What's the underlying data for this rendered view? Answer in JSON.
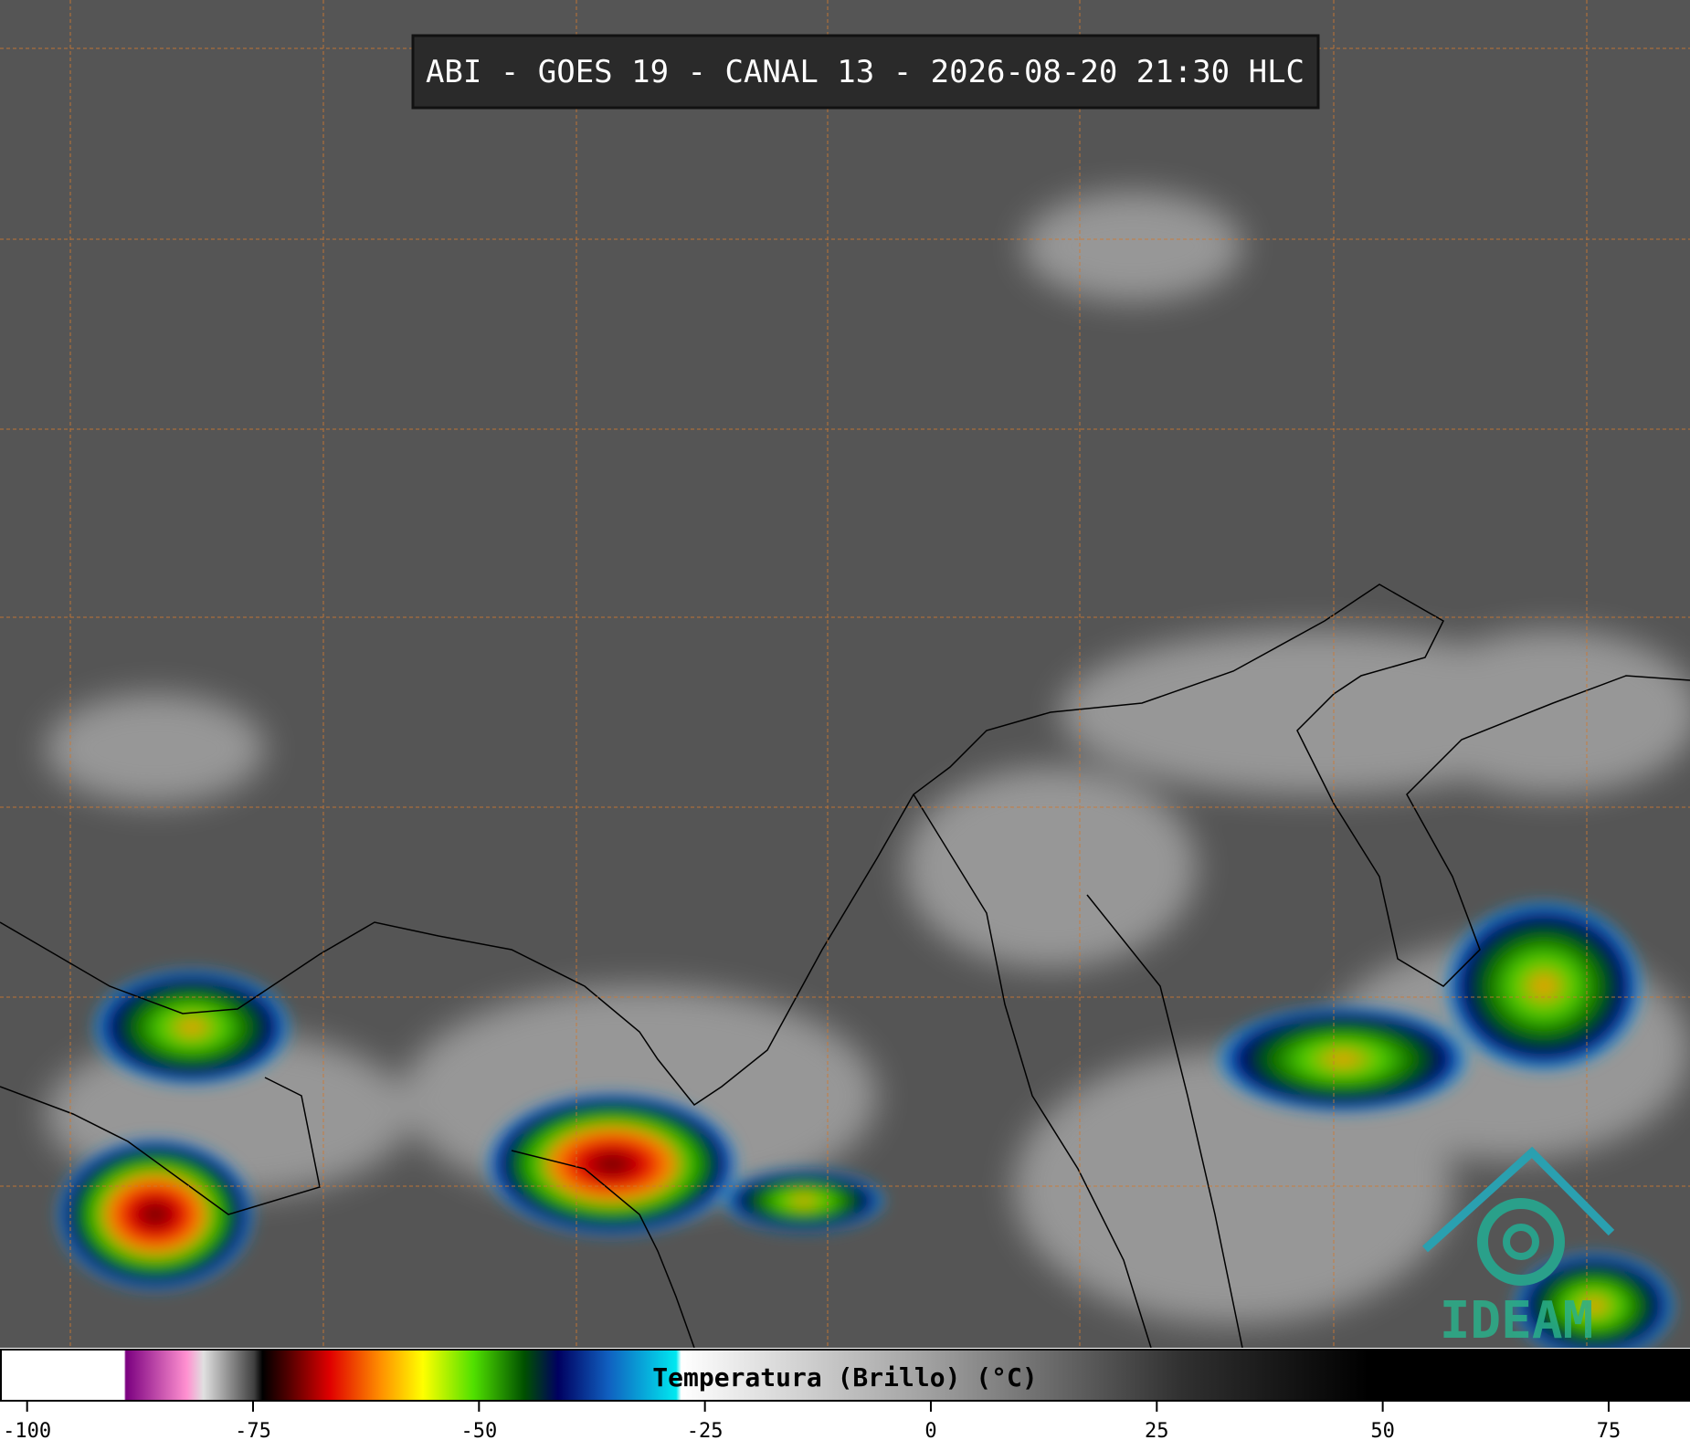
{
  "header": {
    "title": "ABI - GOES 19 - CANAL 13 - 2026-08-20 21:30 HLC"
  },
  "colorbar": {
    "label": "Temperatura (Brillo) (°C)",
    "limits": [
      -103,
      84
    ],
    "ticks": [
      -100,
      -75,
      -50,
      -25,
      0,
      25,
      50,
      75
    ]
  },
  "logo": {
    "text": "IDEAM"
  }
}
